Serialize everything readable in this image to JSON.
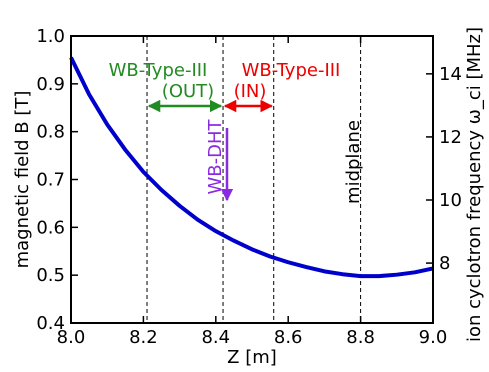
{
  "chart_data": {
    "type": "line",
    "xlabel": "Z [m]",
    "ylabel": "magnetic field B [T]",
    "y2label": "ion cyclotron frequency ω_ci [MHz]",
    "xlim": [
      8.0,
      9.0
    ],
    "ylim": [
      0.4,
      1.0
    ],
    "y2lim": [
      6.1,
      15.2
    ],
    "xticks": [
      8.0,
      8.2,
      8.4,
      8.6,
      8.8,
      9.0
    ],
    "yticks": [
      0.4,
      0.5,
      0.6,
      0.7,
      0.8,
      0.9,
      1.0
    ],
    "y2ticks": [
      8,
      10,
      12,
      14
    ],
    "grid": false,
    "series": [
      {
        "color": "#0000cc",
        "x": [
          8.0,
          8.05,
          8.1,
          8.15,
          8.2,
          8.25,
          8.3,
          8.35,
          8.4,
          8.45,
          8.5,
          8.55,
          8.6,
          8.65,
          8.7,
          8.75,
          8.8,
          8.85,
          8.9,
          8.95,
          9.0
        ],
        "y": [
          0.955,
          0.878,
          0.815,
          0.762,
          0.716,
          0.678,
          0.645,
          0.616,
          0.592,
          0.572,
          0.554,
          0.539,
          0.527,
          0.517,
          0.508,
          0.502,
          0.498,
          0.498,
          0.501,
          0.506,
          0.514
        ]
      }
    ],
    "vlines": [
      8.21,
      8.42,
      8.56,
      8.8
    ],
    "annotations": [
      {
        "id": "wb3-out",
        "lines": [
          "WB-Type-III",
          "(OUT)"
        ],
        "color": "#228b22"
      },
      {
        "id": "wb3-in",
        "lines": [
          "WB-Type-III",
          "(IN)"
        ],
        "color": "#ee0000"
      },
      {
        "id": "wb-dht",
        "lines": [
          "WB-DHT"
        ],
        "color": "#8a2be2"
      },
      {
        "id": "midplane",
        "lines": [
          "midplane"
        ],
        "color": "#000000"
      }
    ]
  }
}
